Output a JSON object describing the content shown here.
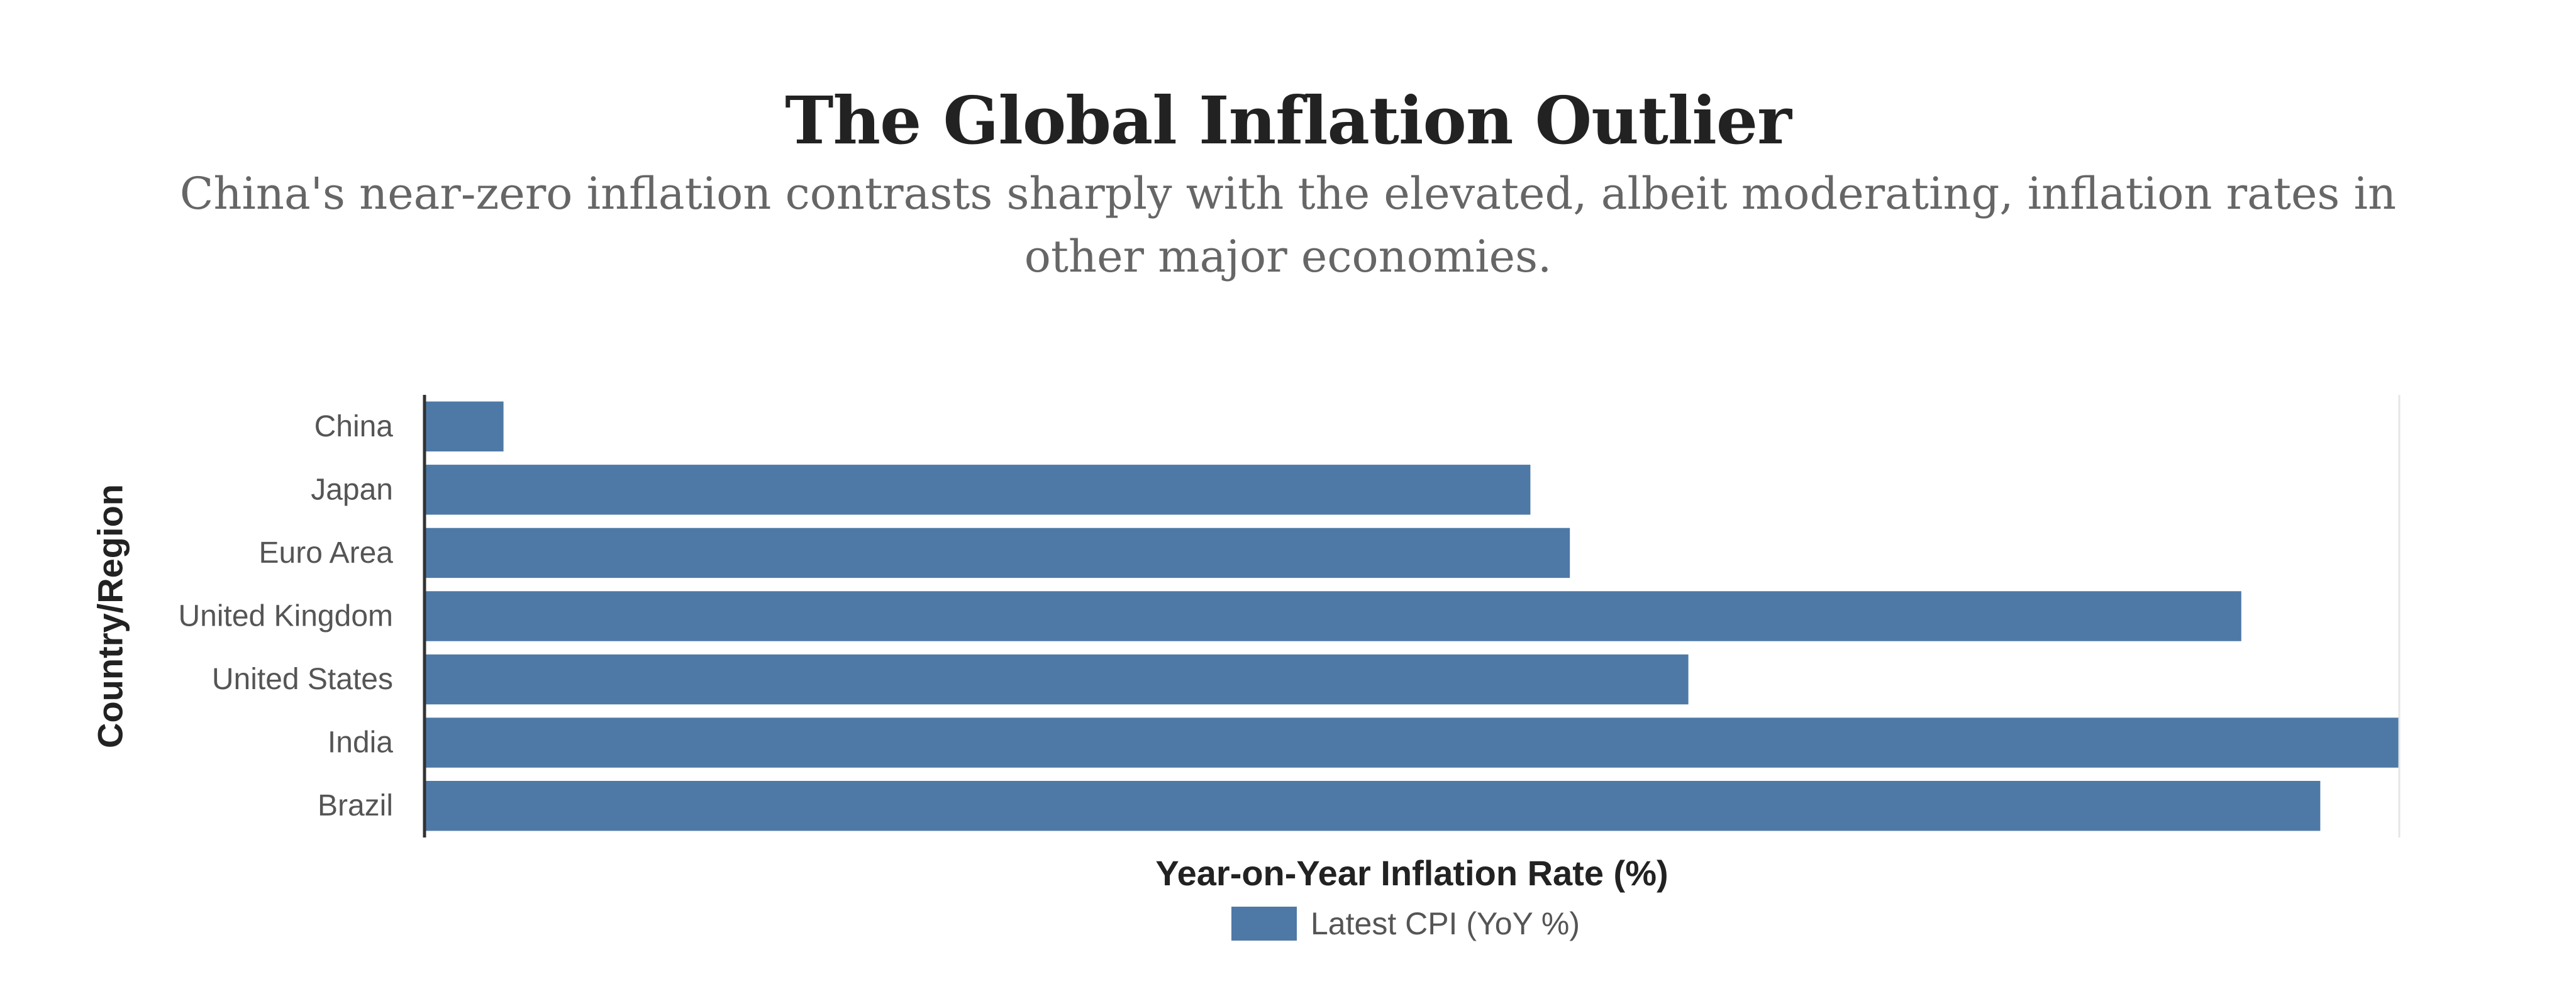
{
  "chart_data": {
    "type": "bar",
    "orientation": "horizontal",
    "title": "The Global Inflation Outlier",
    "subtitle": "China's near-zero inflation contrasts sharply with the elevated, albeit moderating, inflation rates in other major economies.",
    "xlabel": "Year-on-Year Inflation Rate (%)",
    "ylabel": "Country/Region",
    "categories": [
      "China",
      "Japan",
      "Euro Area",
      "United Kingdom",
      "United States",
      "India",
      "Brazil"
    ],
    "series": [
      {
        "name": "Latest CPI (YoY %)",
        "values": [
          0.2,
          2.8,
          2.9,
          4.6,
          3.2,
          5.0,
          4.8
        ],
        "color": "#4e79a7"
      }
    ],
    "xlim": [
      0,
      5.0
    ],
    "grid": false,
    "legend_position": "bottom-center"
  }
}
